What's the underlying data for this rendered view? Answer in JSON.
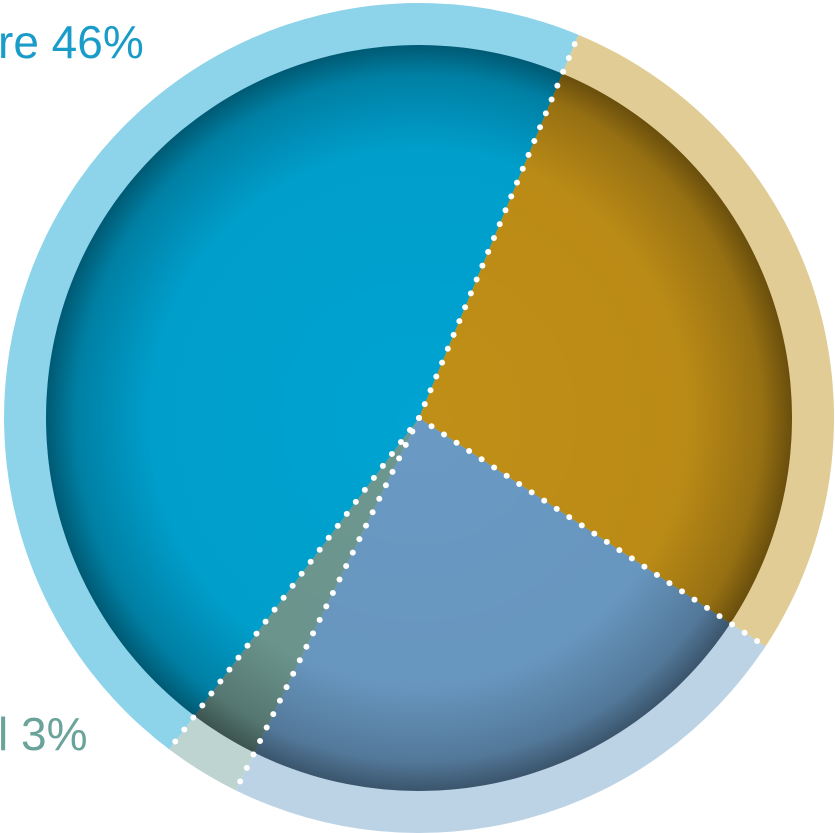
{
  "chart_data": {
    "type": "pie",
    "title": "",
    "slices": [
      {
        "label": "re 46%",
        "value": 46,
        "color": "#00a3d1",
        "ring_color": "#8dd3ea",
        "label_color": "#1a9cc9"
      },
      {
        "label": "",
        "value": 28,
        "color": "#c08f17",
        "ring_color": "#e1cc95",
        "label_color": "#b8860b"
      },
      {
        "label": "",
        "value": 23,
        "color": "#6a9ac4",
        "ring_color": "#bcd3e6",
        "label_color": "#5b87b3"
      },
      {
        "label": "l 3%",
        "value": 3,
        "color": "#6d9890",
        "ring_color": "#bdd4d0",
        "label_color": "#6aa39a"
      }
    ],
    "legend": "none",
    "grid": false
  }
}
